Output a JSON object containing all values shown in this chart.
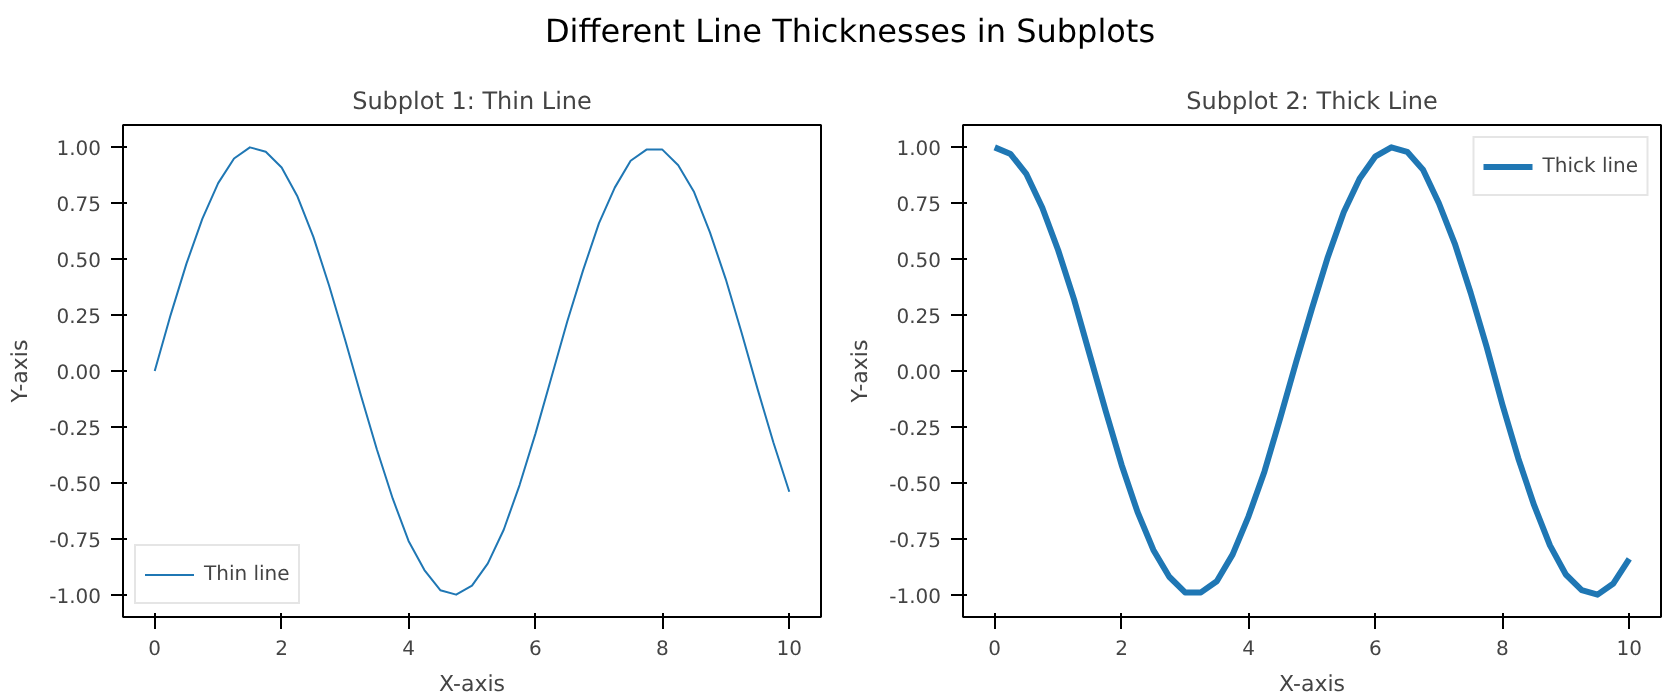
{
  "chart_data": [
    {
      "type": "line",
      "title": "Different Line Thicknesses in Subplots",
      "subtitle": "Subplot 1: Thin Line",
      "xlabel": "X-axis",
      "ylabel": "Y-axis",
      "x": [
        0,
        0.25,
        0.5,
        0.75,
        1,
        1.25,
        1.5,
        1.75,
        2,
        2.25,
        2.5,
        2.75,
        3,
        3.25,
        3.5,
        3.75,
        4,
        4.25,
        4.5,
        4.75,
        5,
        5.25,
        5.5,
        5.75,
        6,
        6.25,
        6.5,
        6.75,
        7,
        7.25,
        7.5,
        7.75,
        8,
        8.25,
        8.5,
        8.75,
        9,
        9.25,
        9.5,
        9.75,
        10
      ],
      "series": [
        {
          "name": "Thin line",
          "color": "#1f77b4",
          "values": [
            0.0,
            0.25,
            0.48,
            0.68,
            0.84,
            0.95,
            1.0,
            0.98,
            0.91,
            0.78,
            0.6,
            0.38,
            0.14,
            -0.11,
            -0.35,
            -0.57,
            -0.76,
            -0.89,
            -0.98,
            -1.0,
            -0.96,
            -0.86,
            -0.71,
            -0.51,
            -0.28,
            -0.03,
            0.22,
            0.45,
            0.66,
            0.82,
            0.94,
            0.99,
            0.99,
            0.92,
            0.8,
            0.62,
            0.41,
            0.17,
            -0.08,
            -0.32,
            -0.54
          ]
        }
      ],
      "xlim": [
        -0.5,
        10.5
      ],
      "ylim": [
        -1.1,
        1.1
      ],
      "xticks": [
        0,
        2,
        4,
        6,
        8,
        10
      ],
      "yticks": [
        {
          "value": -1,
          "label": "-1.00"
        },
        {
          "value": -0.75,
          "label": "-0.75"
        },
        {
          "value": -0.5,
          "label": "-0.50"
        },
        {
          "value": -0.25,
          "label": "-0.25"
        },
        {
          "value": 0,
          "label": "0.00"
        },
        {
          "value": 0.25,
          "label": "0.25"
        },
        {
          "value": 0.5,
          "label": "0.50"
        },
        {
          "value": 0.75,
          "label": "0.75"
        },
        {
          "value": 1,
          "label": "1.00"
        }
      ],
      "grid": false,
      "legend": "bottom left",
      "marker": "none",
      "line_style": "solid"
    },
    {
      "type": "line",
      "subtitle": "Subplot 2: Thick Line",
      "xlabel": "X-axis",
      "ylabel": "Y-axis",
      "x": [
        0,
        0.25,
        0.5,
        0.75,
        1,
        1.25,
        1.5,
        1.75,
        2,
        2.25,
        2.5,
        2.75,
        3,
        3.25,
        3.5,
        3.75,
        4,
        4.25,
        4.5,
        4.75,
        5,
        5.25,
        5.5,
        5.75,
        6,
        6.25,
        6.5,
        6.75,
        7,
        7.25,
        7.5,
        7.75,
        8,
        8.25,
        8.5,
        8.75,
        9,
        9.25,
        9.5,
        9.75,
        10
      ],
      "series": [
        {
          "name": "Thick line",
          "color": "#1f77b4",
          "values": [
            1.0,
            0.97,
            0.88,
            0.73,
            0.54,
            0.32,
            0.07,
            -0.18,
            -0.42,
            -0.63,
            -0.8,
            -0.92,
            -0.99,
            -0.99,
            -0.94,
            -0.82,
            -0.65,
            -0.45,
            -0.21,
            0.04,
            0.28,
            0.51,
            0.71,
            0.86,
            0.96,
            1.0,
            0.98,
            0.9,
            0.75,
            0.57,
            0.35,
            0.11,
            -0.15,
            -0.39,
            -0.6,
            -0.78,
            -0.91,
            -0.98,
            -1.0,
            -0.95,
            -0.84
          ]
        }
      ],
      "xlim": [
        -0.5,
        10.5
      ],
      "ylim": [
        -1.1,
        1.1
      ],
      "xticks": [
        0,
        2,
        4,
        6,
        8,
        10
      ],
      "yticks": [
        {
          "value": -1,
          "label": "-1.00"
        },
        {
          "value": -0.75,
          "label": "-0.75"
        },
        {
          "value": -0.5,
          "label": "-0.50"
        },
        {
          "value": -0.25,
          "label": "-0.25"
        },
        {
          "value": 0,
          "label": "0.00"
        },
        {
          "value": 0.25,
          "label": "0.25"
        },
        {
          "value": 0.5,
          "label": "0.50"
        },
        {
          "value": 0.75,
          "label": "0.75"
        },
        {
          "value": 1,
          "label": "1.00"
        }
      ],
      "grid": false,
      "legend": "top right",
      "marker": "none",
      "line_style": "solid"
    }
  ]
}
